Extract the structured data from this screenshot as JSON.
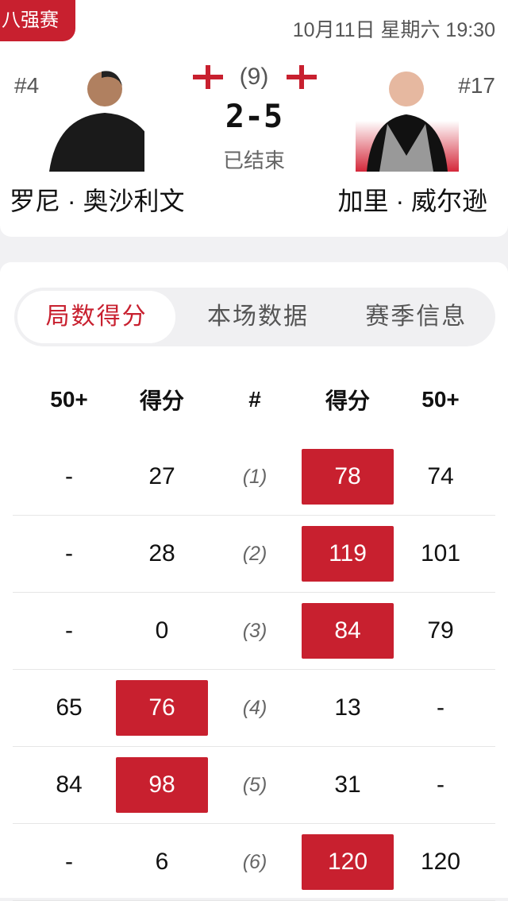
{
  "header": {
    "stage": "八强赛",
    "datetime": "10月11日 星期六 19:30",
    "frames": "(9)",
    "score": "2-5",
    "status": "已结束"
  },
  "players": [
    {
      "rank": "#4",
      "name": "罗尼 · 奥沙利文",
      "flag": "england-flag"
    },
    {
      "rank": "#17",
      "name": "加里 · 威尔逊",
      "flag": "england-flag"
    }
  ],
  "tabs": [
    {
      "label": "局数得分",
      "active": true
    },
    {
      "label": "本场数据"
    },
    {
      "label": "赛季信息"
    }
  ],
  "table": {
    "columns": [
      "50+",
      "得分",
      "#",
      "得分",
      "50+"
    ],
    "rows": [
      {
        "l50": "-",
        "ls": "27",
        "n": "(1)",
        "rs": "78",
        "r50": "74",
        "winner": "right"
      },
      {
        "l50": "-",
        "ls": "28",
        "n": "(2)",
        "rs": "119",
        "r50": "101",
        "winner": "right"
      },
      {
        "l50": "-",
        "ls": "0",
        "n": "(3)",
        "rs": "84",
        "r50": "79",
        "winner": "right"
      },
      {
        "l50": "65",
        "ls": "76",
        "n": "(4)",
        "rs": "13",
        "r50": "-",
        "winner": "left"
      },
      {
        "l50": "84",
        "ls": "98",
        "n": "(5)",
        "rs": "31",
        "r50": "-",
        "winner": "left"
      },
      {
        "l50": "-",
        "ls": "6",
        "n": "(6)",
        "rs": "120",
        "r50": "120",
        "winner": "right"
      }
    ]
  },
  "colors": {
    "accent": "#c8202f"
  }
}
